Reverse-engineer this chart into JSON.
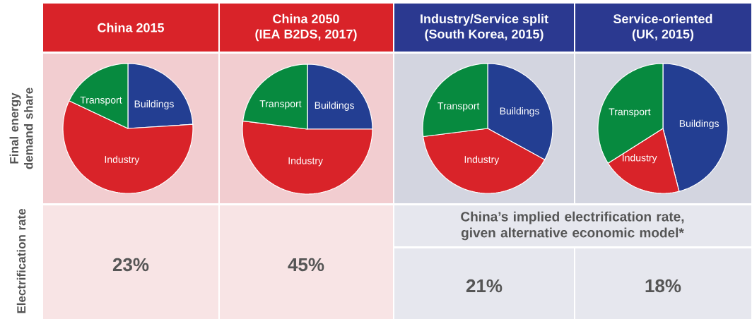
{
  "chart_data": [
    {
      "type": "pie",
      "title": "China 2015",
      "categories": [
        "Buildings",
        "Industry",
        "Transport"
      ],
      "values": [
        24,
        58,
        18
      ],
      "colors": [
        "#233e92",
        "#d92329",
        "#078a3f"
      ],
      "annotations": [
        "23%"
      ]
    },
    {
      "type": "pie",
      "title": "China 2050",
      "subtitle": "(IEA B2DS, 2017)",
      "categories": [
        "Buildings",
        "Industry",
        "Transport"
      ],
      "values": [
        25,
        52,
        23
      ],
      "colors": [
        "#233e92",
        "#d92329",
        "#078a3f"
      ],
      "annotations": [
        "45%"
      ]
    },
    {
      "type": "pie",
      "title": "Industry/Service split",
      "subtitle": "(South Korea, 2015)",
      "categories": [
        "Buildings",
        "Industry",
        "Transport"
      ],
      "values": [
        33,
        40,
        27
      ],
      "colors": [
        "#233e92",
        "#d92329",
        "#078a3f"
      ],
      "annotations": [
        "21%"
      ]
    },
    {
      "type": "pie",
      "title": "Service-oriented",
      "subtitle": "(UK, 2015)",
      "categories": [
        "Buildings",
        "Industry",
        "Transport"
      ],
      "values": [
        46,
        20,
        34
      ],
      "colors": [
        "#233e92",
        "#d92329",
        "#078a3f"
      ],
      "annotations": [
        "18%"
      ]
    },
    {
      "type": "other",
      "title": "China’s implied electrification rate, given alternative economic model*",
      "annotations": [
        "Final energy demand share",
        "Electrification rate"
      ]
    }
  ]
}
